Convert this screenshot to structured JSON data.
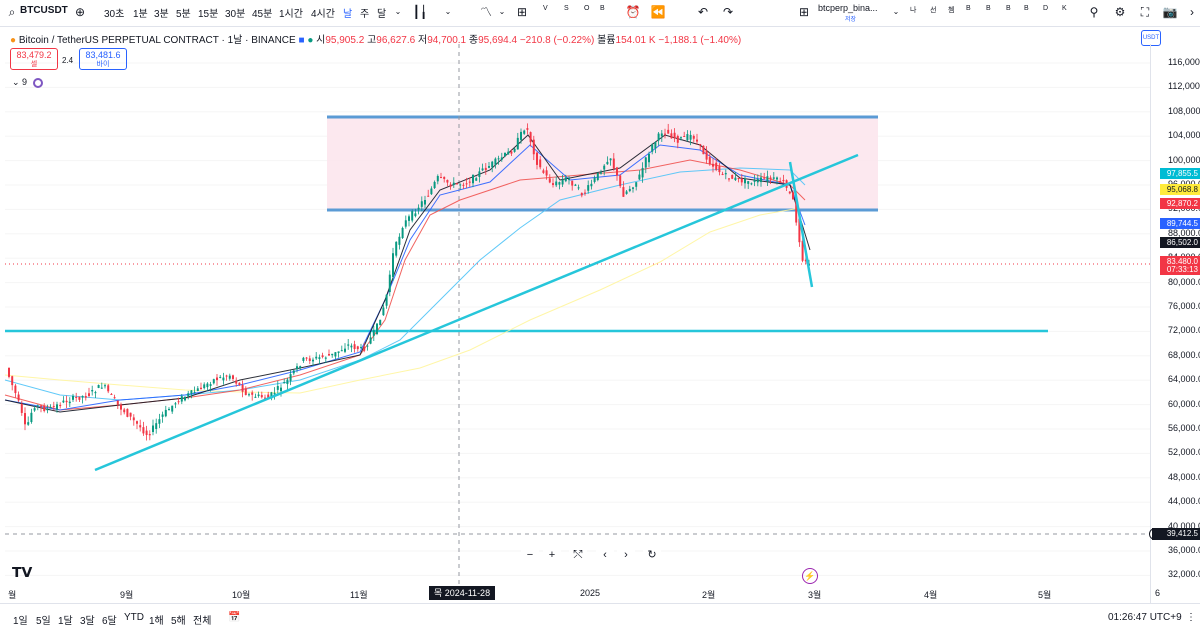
{
  "toolbar": {
    "symbol": "BTCUSDT",
    "intervals": [
      "30초",
      "1분",
      "3분",
      "5분",
      "15분",
      "30분",
      "45분",
      "1시간",
      "4시간",
      "날",
      "주",
      "달"
    ],
    "active_interval": "날",
    "small": [
      "V",
      "S",
      "O",
      "B"
    ],
    "right_symbol": "btcperp_bina...",
    "right_sub": "저장",
    "right_small": [
      "나",
      "선",
      "쳄",
      "B",
      "B",
      "B",
      "B",
      "D",
      "K"
    ]
  },
  "legend": {
    "title": "Bitcoin / TetherUS PERPETUAL CONTRACT · 1날 · BINANCE",
    "open_label": "시",
    "open": "95,905.2",
    "high_label": "고",
    "high": "96,627.6",
    "low_label": "저",
    "low": "94,700.1",
    "close_label": "종",
    "close": "95,694.4",
    "change": "−210.8 (−0.22%)",
    "volume_label": "볼륨",
    "volume": "154.01 K",
    "volume_change": "−1,188.1 (−1.40%)"
  },
  "order": {
    "sell_price": "83,479.2",
    "sell_label": "셀",
    "spread": "2.4",
    "buy_price": "83,481.6",
    "buy_label": "바이"
  },
  "indicator": {
    "count": "9"
  },
  "currency_badge": "USDT",
  "y_ticks": [
    "116,000.0",
    "112,000.0",
    "108,000.0",
    "104,000.0",
    "100,000.0",
    "96,000.0",
    "92,000.0",
    "88,000.0",
    "84,000.0",
    "80,000.0",
    "76,000.0",
    "72,000.0",
    "68,000.0",
    "64,000.0",
    "60,000.0",
    "56,000.0",
    "52,000.0",
    "48,000.0",
    "44,000.0",
    "40,000.0",
    "36,000.0",
    "32,000.0"
  ],
  "price_tags": [
    {
      "value": "97,855.5",
      "color": "#00bcd4"
    },
    {
      "value": "95,068.8",
      "color": "#ffeb3b"
    },
    {
      "value": "92,870.2",
      "color": "#f23645"
    },
    {
      "value": "89,744.5",
      "color": "#2962ff"
    },
    {
      "value": "86,502.0",
      "color": "#131722"
    },
    {
      "value": "83,480.0",
      "color": "#f23645"
    },
    {
      "value": "07:33:13",
      "color": "#f23645"
    }
  ],
  "crosshair_price": "39,412.5",
  "x_labels": [
    "월",
    "9월",
    "10월",
    "11월",
    "2025",
    "2월",
    "3월",
    "4월",
    "5월",
    "6"
  ],
  "crosshair_date": "목 2024-11-28",
  "ranges": [
    "1일",
    "5일",
    "1달",
    "3달",
    "6달",
    "YTD",
    "1해",
    "5해",
    "전체"
  ],
  "clock": "01:26:47 UTC+9",
  "colors": {
    "up": "#089981",
    "down": "#f23645",
    "zone": "#fce4ec",
    "zone_border": "#5b9bd5",
    "trend": "#26c6da"
  }
}
